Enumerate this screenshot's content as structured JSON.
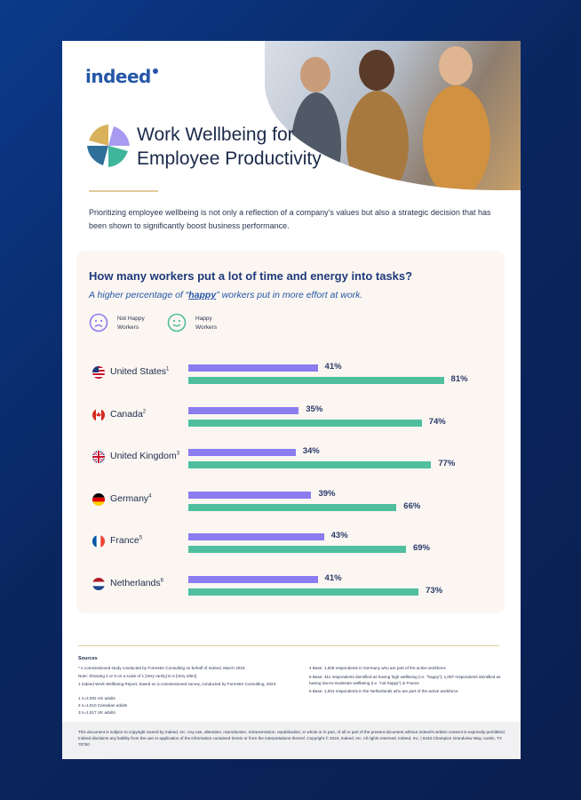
{
  "logo": "indeed",
  "title_line1": "Work Wellbeing for",
  "title_line2": "Employee Productivity",
  "intro": "Prioritizing employee wellbeing is not only a reflection of a company's values but also a strategic decision that has been shown to significantly boost business performance.",
  "question": "How many workers put a lot of time and energy into tasks?",
  "subtitle_pre": "A higher percentage of “",
  "subtitle_em": "happy",
  "subtitle_post": "” workers put in more effort at work.",
  "legend": {
    "not_happy": "Not Happy Workers",
    "happy": "Happy Workers"
  },
  "colors": {
    "not_happy": "#8b7cf0",
    "happy": "#4fbf9f",
    "title": "#1f3a7a",
    "accent": "#2557a7"
  },
  "chart_data": {
    "type": "bar",
    "title": "How many workers put a lot of time and energy into tasks?",
    "subtitle": "A higher percentage of “happy” workers put in more effort at work.",
    "categories": [
      "United States",
      "Canada",
      "United Kingdom",
      "Germany",
      "France",
      "Netherlands"
    ],
    "footnotes": [
      "1",
      "2",
      "3",
      "4",
      "5",
      "6"
    ],
    "series": [
      {
        "name": "Not Happy Workers",
        "values": [
          41,
          35,
          34,
          39,
          43,
          41
        ]
      },
      {
        "name": "Happy Workers",
        "values": [
          81,
          74,
          77,
          66,
          69,
          73
        ]
      }
    ],
    "value_suffix": "%",
    "orientation": "horizontal",
    "xlim": [
      0,
      100
    ],
    "legend_position": "top-left",
    "grid": false
  },
  "sources": {
    "heading": "Sources",
    "left": [
      "* A commissioned study conducted by Forrester Consulting on behalf of Indeed, March 2023",
      "Note: Showing 4 or 5 on a scale of 1 [Very rarely] to 5 [Very often]",
      "1 Indeed Work Wellbeing Report, based on a commissioned survey, conducted by Forrester Consulting, 2023",
      "1 n=4,002 US adults",
      "2 n=1,510 Canadian adults",
      "3 n=1,517 UK adults"
    ],
    "right": [
      "4 Base: 1,506 respondents in Germany who are part of the active workforce",
      "5 Base: 411 respondents identified as having high wellbeing (i.e. “happy”); 1,097 respondents identified as having low-to-moderate wellbeing (i.e. “not happy”) in France",
      "6 Base: 1,504 respondents in the Netherlands who are part of the active workforce"
    ]
  },
  "footer": "This document is subject to copyright owned by Indeed, Inc. Any use, alteration, reproduction, retransmission, republication, in whole or in part, of all or part of the present document without Indeed's written consent is expressly prohibited. Indeed disclaims any liability from the use or application of the information contained herein or from the interpretations thereof. Copyright © 2024, Indeed, Inc. All rights reserved. Indeed, Inc. | 6433 Champion Grandview Way, Austin, TX 78750"
}
